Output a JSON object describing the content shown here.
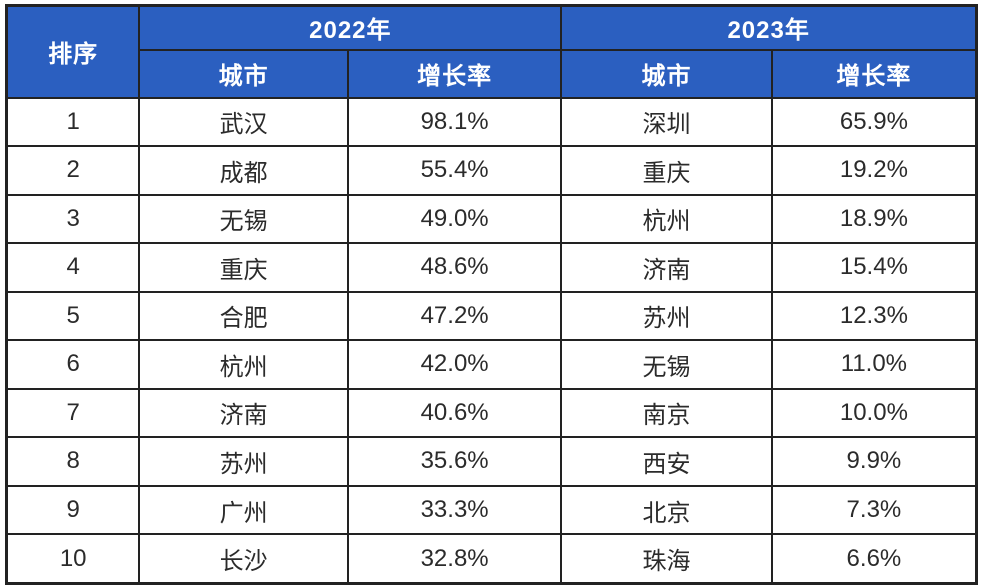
{
  "chart_data": {
    "type": "table",
    "header": {
      "rank": "排序",
      "groups": [
        {
          "year": "2022年",
          "sub": [
            "城市",
            "增长率"
          ]
        },
        {
          "year": "2023年",
          "sub": [
            "城市",
            "增长率"
          ]
        }
      ]
    },
    "rows": [
      {
        "rank": "1",
        "y2022_city": "武汉",
        "y2022_rate": "98.1%",
        "y2023_city": "深圳",
        "y2023_rate": "65.9%"
      },
      {
        "rank": "2",
        "y2022_city": "成都",
        "y2022_rate": "55.4%",
        "y2023_city": "重庆",
        "y2023_rate": "19.2%"
      },
      {
        "rank": "3",
        "y2022_city": "无锡",
        "y2022_rate": "49.0%",
        "y2023_city": "杭州",
        "y2023_rate": "18.9%"
      },
      {
        "rank": "4",
        "y2022_city": "重庆",
        "y2022_rate": "48.6%",
        "y2023_city": "济南",
        "y2023_rate": "15.4%"
      },
      {
        "rank": "5",
        "y2022_city": "合肥",
        "y2022_rate": "47.2%",
        "y2023_city": "苏州",
        "y2023_rate": "12.3%"
      },
      {
        "rank": "6",
        "y2022_city": "杭州",
        "y2022_rate": "42.0%",
        "y2023_city": "无锡",
        "y2023_rate": "11.0%"
      },
      {
        "rank": "7",
        "y2022_city": "济南",
        "y2022_rate": "40.6%",
        "y2023_city": "南京",
        "y2023_rate": "10.0%"
      },
      {
        "rank": "8",
        "y2022_city": "苏州",
        "y2022_rate": "35.6%",
        "y2023_city": "西安",
        "y2023_rate": "9.9%"
      },
      {
        "rank": "9",
        "y2022_city": "广州",
        "y2022_rate": "33.3%",
        "y2023_city": "北京",
        "y2023_rate": "7.3%"
      },
      {
        "rank": "10",
        "y2022_city": "长沙",
        "y2022_rate": "32.8%",
        "y2023_city": "珠海",
        "y2023_rate": "6.6%"
      }
    ]
  },
  "colors": {
    "header_bg": "#2b5fc0",
    "header_text": "#ffffff",
    "body_text": "#2b2b2b",
    "border": "#222222",
    "page_bg": "#ffffff"
  }
}
